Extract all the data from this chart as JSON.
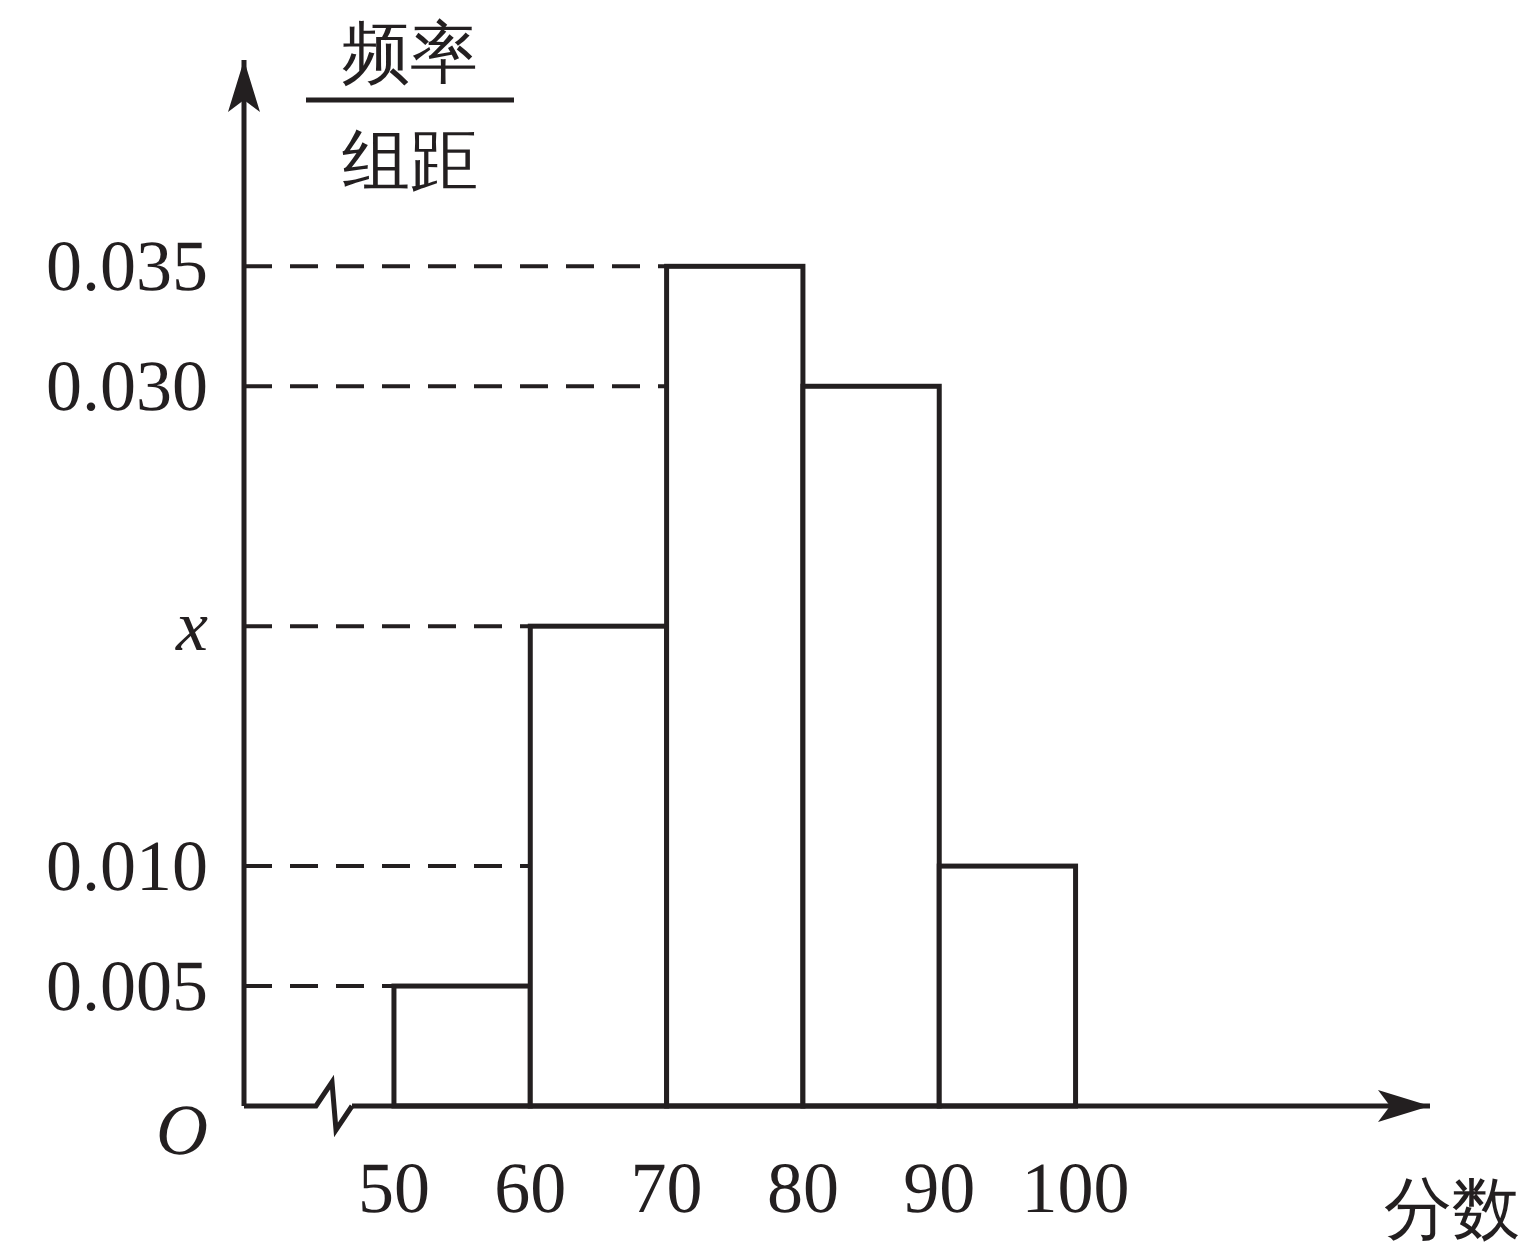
{
  "chart_data": {
    "type": "histogram",
    "ylabel": "频率组距",
    "xlabel": "分数",
    "bins": [
      50,
      60,
      70,
      80,
      90,
      100
    ],
    "values": [
      0.005,
      0.02,
      0.035,
      0.03,
      0.01
    ],
    "color": "#ffffff",
    "xlim": [
      39,
      126
    ],
    "ylim": [
      0,
      0.0436
    ],
    "xticks": [
      50,
      60,
      70,
      80,
      90,
      100
    ],
    "yticks": [
      {
        "value": 0,
        "label": "O"
      },
      {
        "value": 0.005,
        "label": "0.005"
      },
      {
        "value": 0.01,
        "label": "0.010"
      },
      {
        "value": 0.02,
        "label": "x"
      },
      {
        "value": 0.03,
        "label": "0.030"
      },
      {
        "value": 0.035,
        "label": "0.035"
      }
    ],
    "ref_lines": [
      {
        "axis": "y",
        "value": 0.005,
        "line_style": "dashed"
      },
      {
        "axis": "y",
        "value": 0.01,
        "line_style": "dashed"
      },
      {
        "axis": "y",
        "value": 0.02,
        "line_style": "dashed"
      },
      {
        "axis": "y",
        "value": 0.03,
        "line_style": "dashed"
      },
      {
        "axis": "y",
        "value": 0.035,
        "line_style": "dashed"
      }
    ]
  }
}
